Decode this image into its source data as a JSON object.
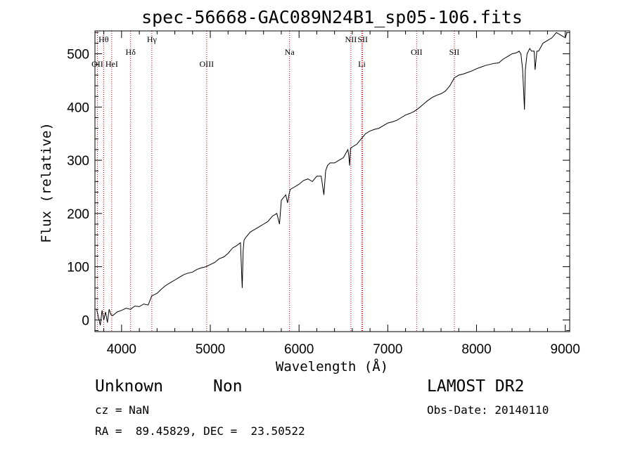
{
  "chart_data": {
    "type": "line",
    "title": "spec-56668-GAC089N24B1_sp05-106.fits",
    "xlabel": "Wavelength (Å)",
    "ylabel": "Flux (relative)",
    "xlim": [
      3700,
      9050
    ],
    "ylim": [
      -22,
      543
    ],
    "xticks": [
      4000,
      5000,
      6000,
      7000,
      8000,
      9000
    ],
    "yticks": [
      0,
      100,
      200,
      300,
      400,
      500
    ],
    "line_color": "#000000",
    "marker_color": "#cc0000",
    "spectral_lines": [
      {
        "label": "Hθ",
        "x": 3798,
        "row": 1
      },
      {
        "label": "OII",
        "x": 3727,
        "row": 3
      },
      {
        "label": "HeI",
        "x": 3889,
        "row": 3
      },
      {
        "label": "Hδ",
        "x": 4102,
        "row": 2
      },
      {
        "label": "Hγ",
        "x": 4341,
        "row": 1
      },
      {
        "label": "OIII",
        "x": 4959,
        "row": 3
      },
      {
        "label": "Na",
        "x": 5893,
        "row": 2
      },
      {
        "label": "NII",
        "x": 6584,
        "row": 1
      },
      {
        "label": "SII",
        "x": 6717,
        "row": 1
      },
      {
        "label": "Li",
        "x": 6708,
        "row": 3
      },
      {
        "label": "OII",
        "x": 7325,
        "row": 2
      },
      {
        "label": "SII",
        "x": 7750,
        "row": 2
      }
    ],
    "series": [
      {
        "x": [
          3720,
          3740,
          3760,
          3780,
          3800,
          3820,
          3840,
          3860,
          3880,
          3900,
          3950,
          4000,
          4050,
          4100,
          4150,
          4200,
          4250,
          4300,
          4340,
          4400,
          4450,
          4500,
          4550,
          4600,
          4650,
          4700,
          4750,
          4800,
          4850,
          4900,
          4950,
          5000,
          5050,
          5100,
          5150,
          5200,
          5250,
          5300,
          5340,
          5360,
          5370,
          5380,
          5400,
          5450,
          5500,
          5550,
          5600,
          5650,
          5700,
          5750,
          5780,
          5800,
          5850,
          5870,
          5890,
          5900,
          5950,
          6000,
          6050,
          6100,
          6150,
          6200,
          6250,
          6280,
          6300,
          6320,
          6350,
          6400,
          6450,
          6500,
          6550,
          6560,
          6570,
          6580,
          6600,
          6650,
          6700,
          6750,
          6800,
          6850,
          6900,
          6950,
          7000,
          7050,
          7100,
          7150,
          7200,
          7250,
          7300,
          7350,
          7400,
          7450,
          7500,
          7550,
          7600,
          7650,
          7700,
          7750,
          7800,
          7850,
          7900,
          7950,
          8000,
          8050,
          8100,
          8150,
          8200,
          8250,
          8300,
          8350,
          8400,
          8450,
          8480,
          8500,
          8520,
          8540,
          8550,
          8570,
          8600,
          8620,
          8650,
          8660,
          8680,
          8700,
          8750,
          8800,
          8850,
          8900,
          8950,
          9000,
          9020
        ],
        "y": [
          20,
          5,
          -10,
          18,
          0,
          15,
          -5,
          20,
          10,
          8,
          15,
          18,
          22,
          20,
          26,
          25,
          30,
          28,
          45,
          50,
          58,
          65,
          70,
          75,
          80,
          85,
          88,
          90,
          95,
          98,
          100,
          104,
          108,
          115,
          118,
          125,
          135,
          140,
          145,
          60,
          130,
          150,
          155,
          165,
          170,
          175,
          180,
          185,
          195,
          200,
          180,
          225,
          235,
          220,
          238,
          245,
          250,
          255,
          262,
          265,
          260,
          270,
          270,
          235,
          280,
          290,
          295,
          295,
          300,
          305,
          320,
          310,
          290,
          322,
          325,
          330,
          340,
          350,
          355,
          358,
          360,
          365,
          370,
          372,
          375,
          380,
          385,
          388,
          392,
          398,
          405,
          412,
          418,
          422,
          425,
          430,
          440,
          455,
          460,
          462,
          465,
          468,
          472,
          475,
          478,
          480,
          482,
          483,
          490,
          495,
          500,
          502,
          505,
          500,
          470,
          395,
          470,
          500,
          510,
          505,
          505,
          470,
          505,
          505,
          520,
          525,
          530,
          540,
          535,
          530,
          540
        ]
      }
    ]
  },
  "info": {
    "object_class": "Unknown",
    "subclass": "Non",
    "cz": "cz = NaN",
    "coords": "RA =  89.45829, DEC =  23.50522",
    "survey": "LAMOST DR2",
    "obs_date": "Obs-Date: 20140110"
  }
}
